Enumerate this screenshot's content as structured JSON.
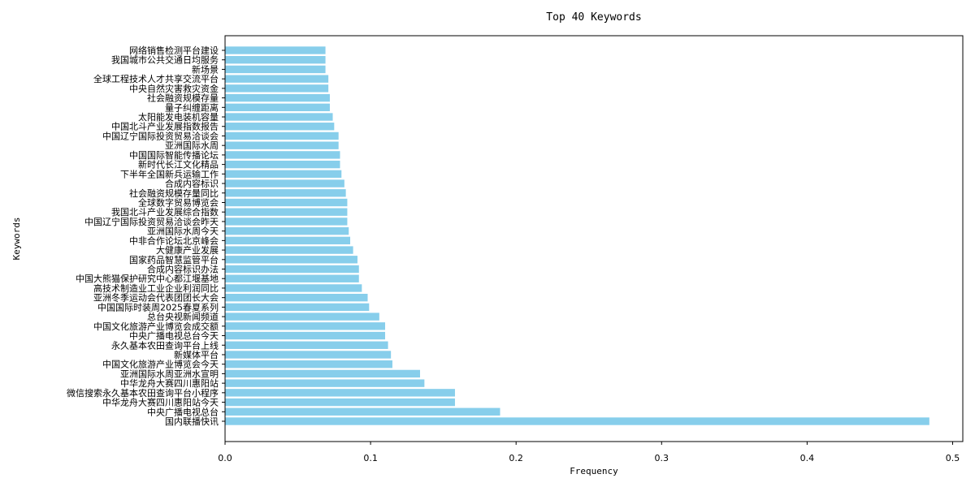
{
  "chart_data": {
    "type": "bar",
    "orientation": "horizontal",
    "title": "Top 40 Keywords",
    "xlabel": "Frequency",
    "ylabel": "Keywords",
    "xlim": [
      0,
      0.507
    ],
    "xticks": [
      0.0,
      0.1,
      0.2,
      0.3,
      0.4,
      0.5
    ],
    "xtick_labels": [
      "0.0",
      "0.1",
      "0.2",
      "0.3",
      "0.4",
      "0.5"
    ],
    "bar_color": "#87ceeb",
    "grid": false,
    "categories": [
      "国内联播快讯",
      "中央广播电视总台",
      "中华龙舟大赛四川惠阳站今天",
      "微信搜索永久基本农田查询平台小程序",
      "中华龙舟大赛四川惠阳站",
      "亚洲国际水周亚洲水宣明",
      "中国文化旅游产业博览会今天",
      "新媒体平台",
      "永久基本农田查询平台上线",
      "中央广播电视总台今天",
      "中国文化旅游产业博览会成交额",
      "总台央视新闻频道",
      "中国国际时装周2025春夏系列",
      "亚洲冬季运动会代表团团长大会",
      "高技术制造业工业企业利润同比",
      "中国大熊猫保护研究中心都江堰基地",
      "合成内容标识办法",
      "国家药品智慧监管平台",
      "大健康产业发展",
      "中非合作论坛北京峰会",
      "亚洲国际水周今天",
      "中国辽宁国际投资贸易洽谈会昨天",
      "我国北斗产业发展综合指数",
      "全球数字贸易博览会",
      "社会融资规模存量同比",
      "合成内容标识",
      "下半年全国新兵运输工作",
      "新时代长江文化精品",
      "中国国际智能传播论坛",
      "亚洲国际水周",
      "中国辽宁国际投资贸易洽谈会",
      "中国北斗产业发展指数报告",
      "太阳能发电装机容量",
      "量子纠缠距离",
      "社会融资规模存量",
      "中央自然灾害救灾资金",
      "全球工程技术人才共享交流平台",
      "新场景",
      "我国城市公共交通日均服务",
      "网络销售检测平台建设"
    ],
    "values": [
      0.484,
      0.189,
      0.158,
      0.158,
      0.137,
      0.134,
      0.115,
      0.114,
      0.112,
      0.11,
      0.11,
      0.106,
      0.099,
      0.098,
      0.094,
      0.092,
      0.092,
      0.091,
      0.088,
      0.086,
      0.085,
      0.084,
      0.084,
      0.084,
      0.083,
      0.082,
      0.08,
      0.079,
      0.079,
      0.078,
      0.078,
      0.075,
      0.074,
      0.072,
      0.072,
      0.071,
      0.071,
      0.069,
      0.069,
      0.069
    ]
  }
}
